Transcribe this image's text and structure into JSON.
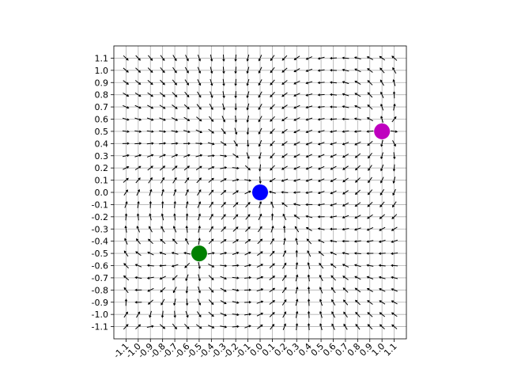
{
  "chart_data": {
    "type": "scatter",
    "subtype": "quiver",
    "title": "",
    "xlabel": "",
    "ylabel": "",
    "xlim": [
      -1.2,
      1.2
    ],
    "ylim": [
      -1.2,
      1.2
    ],
    "grid": true,
    "aspect": "equal",
    "x_ticks": [
      -1.1,
      -1.0,
      -0.9,
      -0.8,
      -0.7,
      -0.6,
      -0.5,
      -0.4,
      -0.3,
      -0.2,
      -0.1,
      0.0,
      0.1,
      0.2,
      0.3,
      0.4,
      0.5,
      0.6,
      0.7,
      0.8,
      0.9,
      1.0,
      1.1
    ],
    "x_tick_labels": [
      "-1.1",
      "-1.0",
      "-0.9",
      "-0.8",
      "-0.7",
      "-0.6",
      "-0.5",
      "-0.4",
      "-0.3",
      "-0.2",
      "-0.1",
      "0.0",
      "0.1",
      "0.2",
      "0.3",
      "0.4",
      "0.5",
      "0.6",
      "0.7",
      "0.8",
      "0.9",
      "1.0",
      "1.1"
    ],
    "x_tick_rotation": 45,
    "y_ticks": [
      1.1,
      1.0,
      0.9,
      0.8,
      0.7,
      0.6,
      0.5,
      0.4,
      0.3,
      0.2,
      0.1,
      0.0,
      -0.1,
      -0.2,
      -0.3,
      -0.4,
      -0.5,
      -0.6,
      -0.7,
      -0.8,
      -0.9,
      -1.0,
      -1.1
    ],
    "y_tick_labels": [
      "1.1",
      "1.0",
      "0.9",
      "0.8",
      "0.7",
      "0.6",
      "0.5",
      "0.4",
      "0.3",
      "0.2",
      "0.1",
      "0.0",
      "-0.1",
      "-0.2",
      "-0.3",
      "-0.4",
      "-0.5",
      "-0.6",
      "-0.7",
      "-0.8",
      "-0.9",
      "-1.0",
      "-1.1"
    ],
    "points": [
      {
        "x": 0.0,
        "y": 0.0,
        "color": "#0000ff"
      },
      {
        "x": 1.0,
        "y": 0.5,
        "color": "#bf00bf"
      },
      {
        "x": -0.5,
        "y": -0.5,
        "color": "#008000"
      }
    ],
    "vector_field": {
      "x_range": [
        -1.1,
        1.1
      ],
      "y_range": [
        -1.1,
        1.1
      ],
      "step": 0.1,
      "attractor": [
        0.0,
        0.0
      ],
      "repellers": [
        [
          1.0,
          0.5
        ],
        [
          -0.5,
          -0.5
        ]
      ],
      "arrow_color": "#000000"
    }
  }
}
